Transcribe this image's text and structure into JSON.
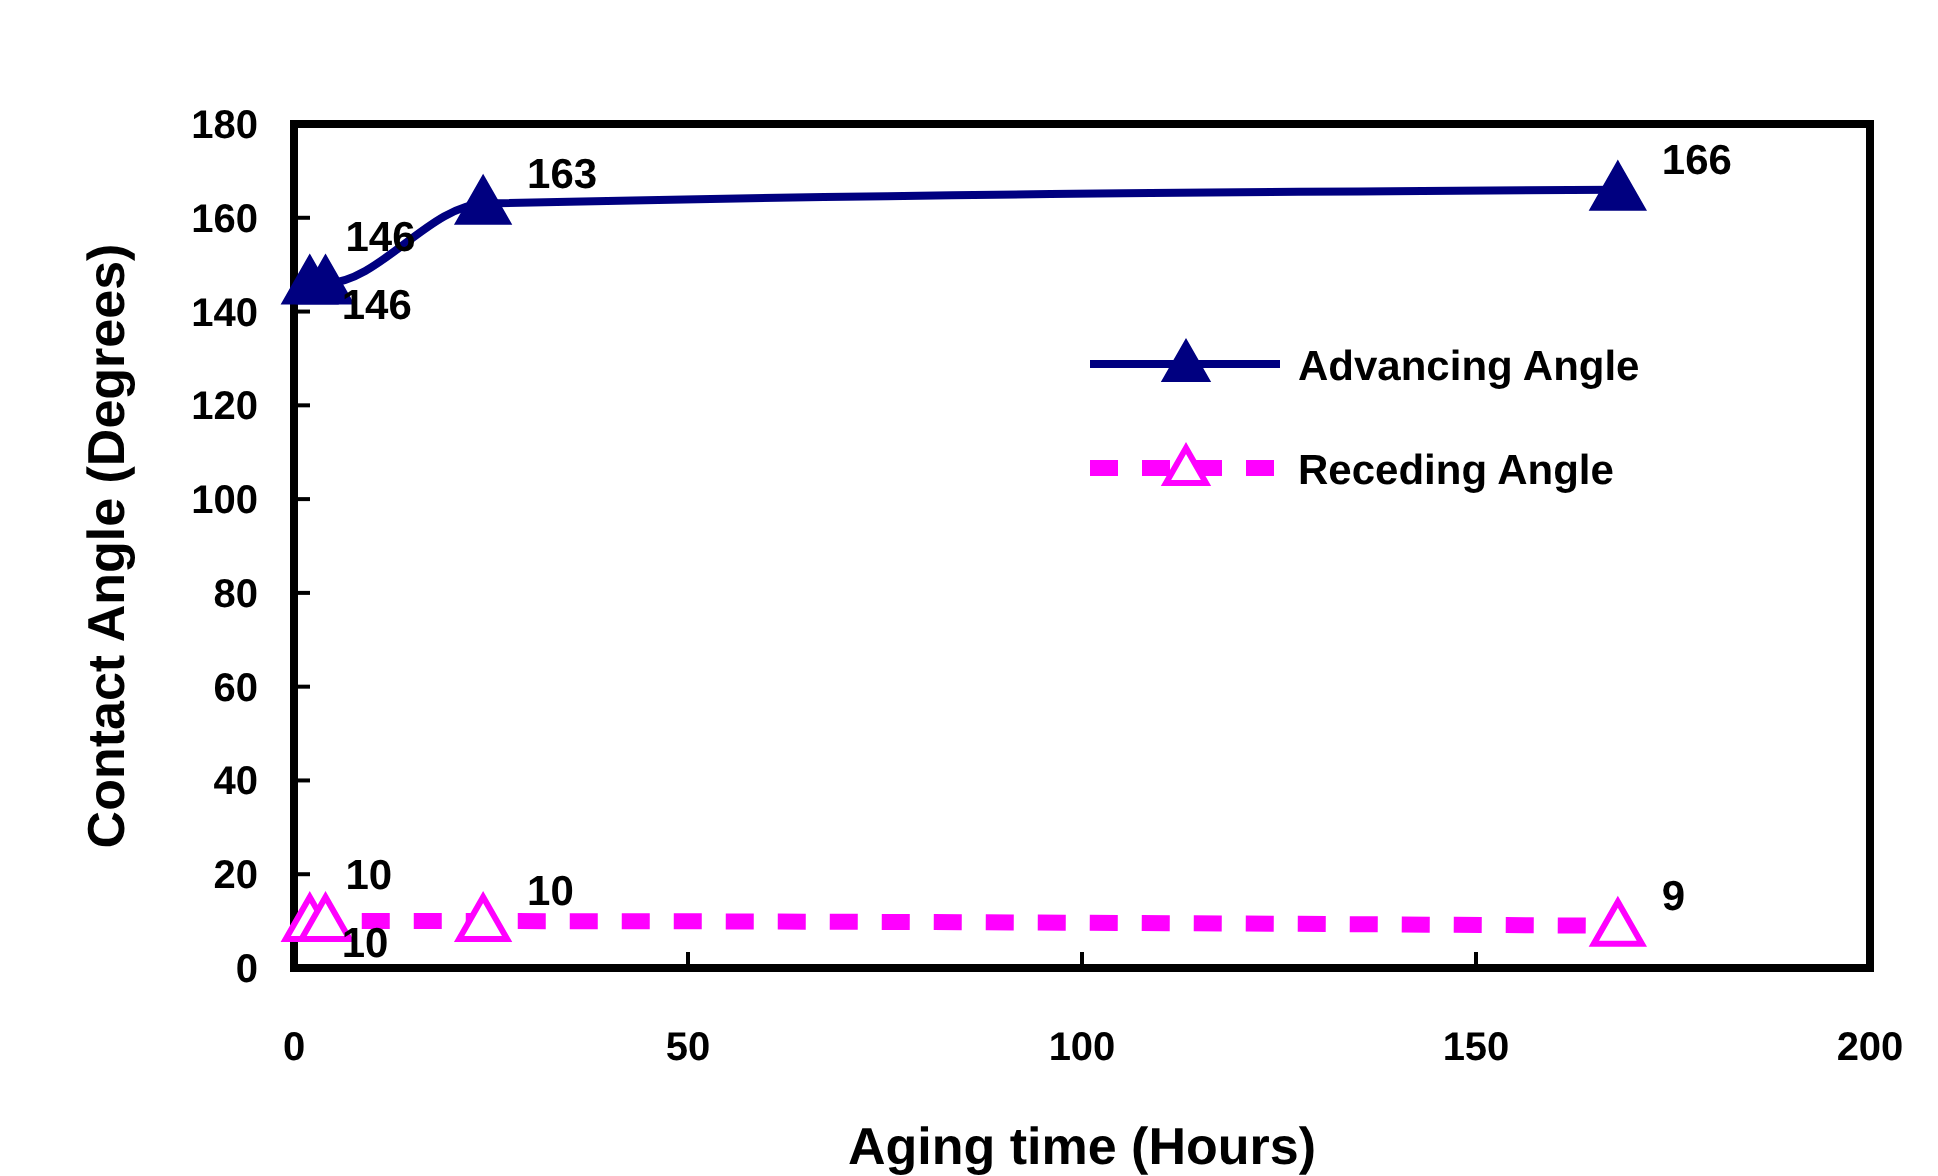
{
  "chart_data": {
    "type": "line",
    "xlabel": "Aging time (Hours)",
    "ylabel": "Contact Angle (Degrees)",
    "xlim": [
      0,
      200
    ],
    "xticks": [
      0,
      50,
      100,
      150,
      200
    ],
    "ylim": [
      0,
      180
    ],
    "yticks": [
      0,
      20,
      40,
      60,
      80,
      100,
      120,
      140,
      160,
      180
    ],
    "x": [
      2,
      4,
      24,
      168
    ],
    "series": [
      {
        "name": "Advancing Angle",
        "color": "#000080",
        "values": [
          146,
          146,
          163,
          166
        ],
        "line_style": "solid",
        "marker": "triangle"
      },
      {
        "name": "Receding Angle",
        "color": "#ff00ff",
        "values": [
          10,
          10,
          10,
          9
        ],
        "line_style": "dashed",
        "marker": "triangle"
      }
    ],
    "data_labels": true,
    "legend": "right",
    "grid": false
  }
}
